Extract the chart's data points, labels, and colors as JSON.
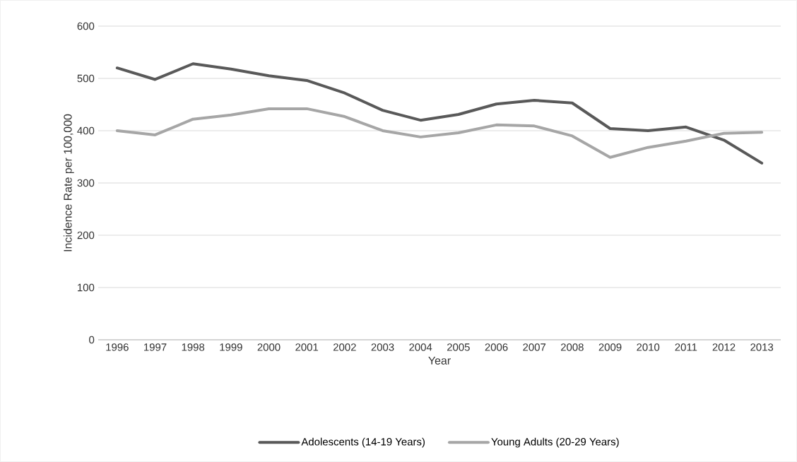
{
  "chart_data": {
    "type": "line",
    "xlabel": "Year",
    "ylabel": "Incidence Rate per 100,000",
    "categories": [
      "1996",
      "1997",
      "1998",
      "1999",
      "2000",
      "2001",
      "2002",
      "2003",
      "2004",
      "2005",
      "2006",
      "2007",
      "2008",
      "2009",
      "2010",
      "2011",
      "2012",
      "2013"
    ],
    "series": [
      {
        "name": "Adolescents (14-19 Years)",
        "color": "#595959",
        "values": [
          520,
          498,
          528,
          518,
          505,
          496,
          472,
          439,
          420,
          431,
          451,
          458,
          453,
          404,
          400,
          407,
          382,
          338
        ]
      },
      {
        "name": "Young Adults (20-29 Years)",
        "color": "#a6a6a6",
        "values": [
          400,
          392,
          422,
          430,
          442,
          442,
          427,
          400,
          388,
          396,
          411,
          409,
          390,
          349,
          368,
          380,
          395,
          397
        ]
      }
    ],
    "ylim": [
      0,
      600
    ],
    "yticks": [
      0,
      100,
      200,
      300,
      400,
      500,
      600
    ],
    "grid": "y",
    "legend": "bottom",
    "marker": "none",
    "line_style": "solid"
  }
}
